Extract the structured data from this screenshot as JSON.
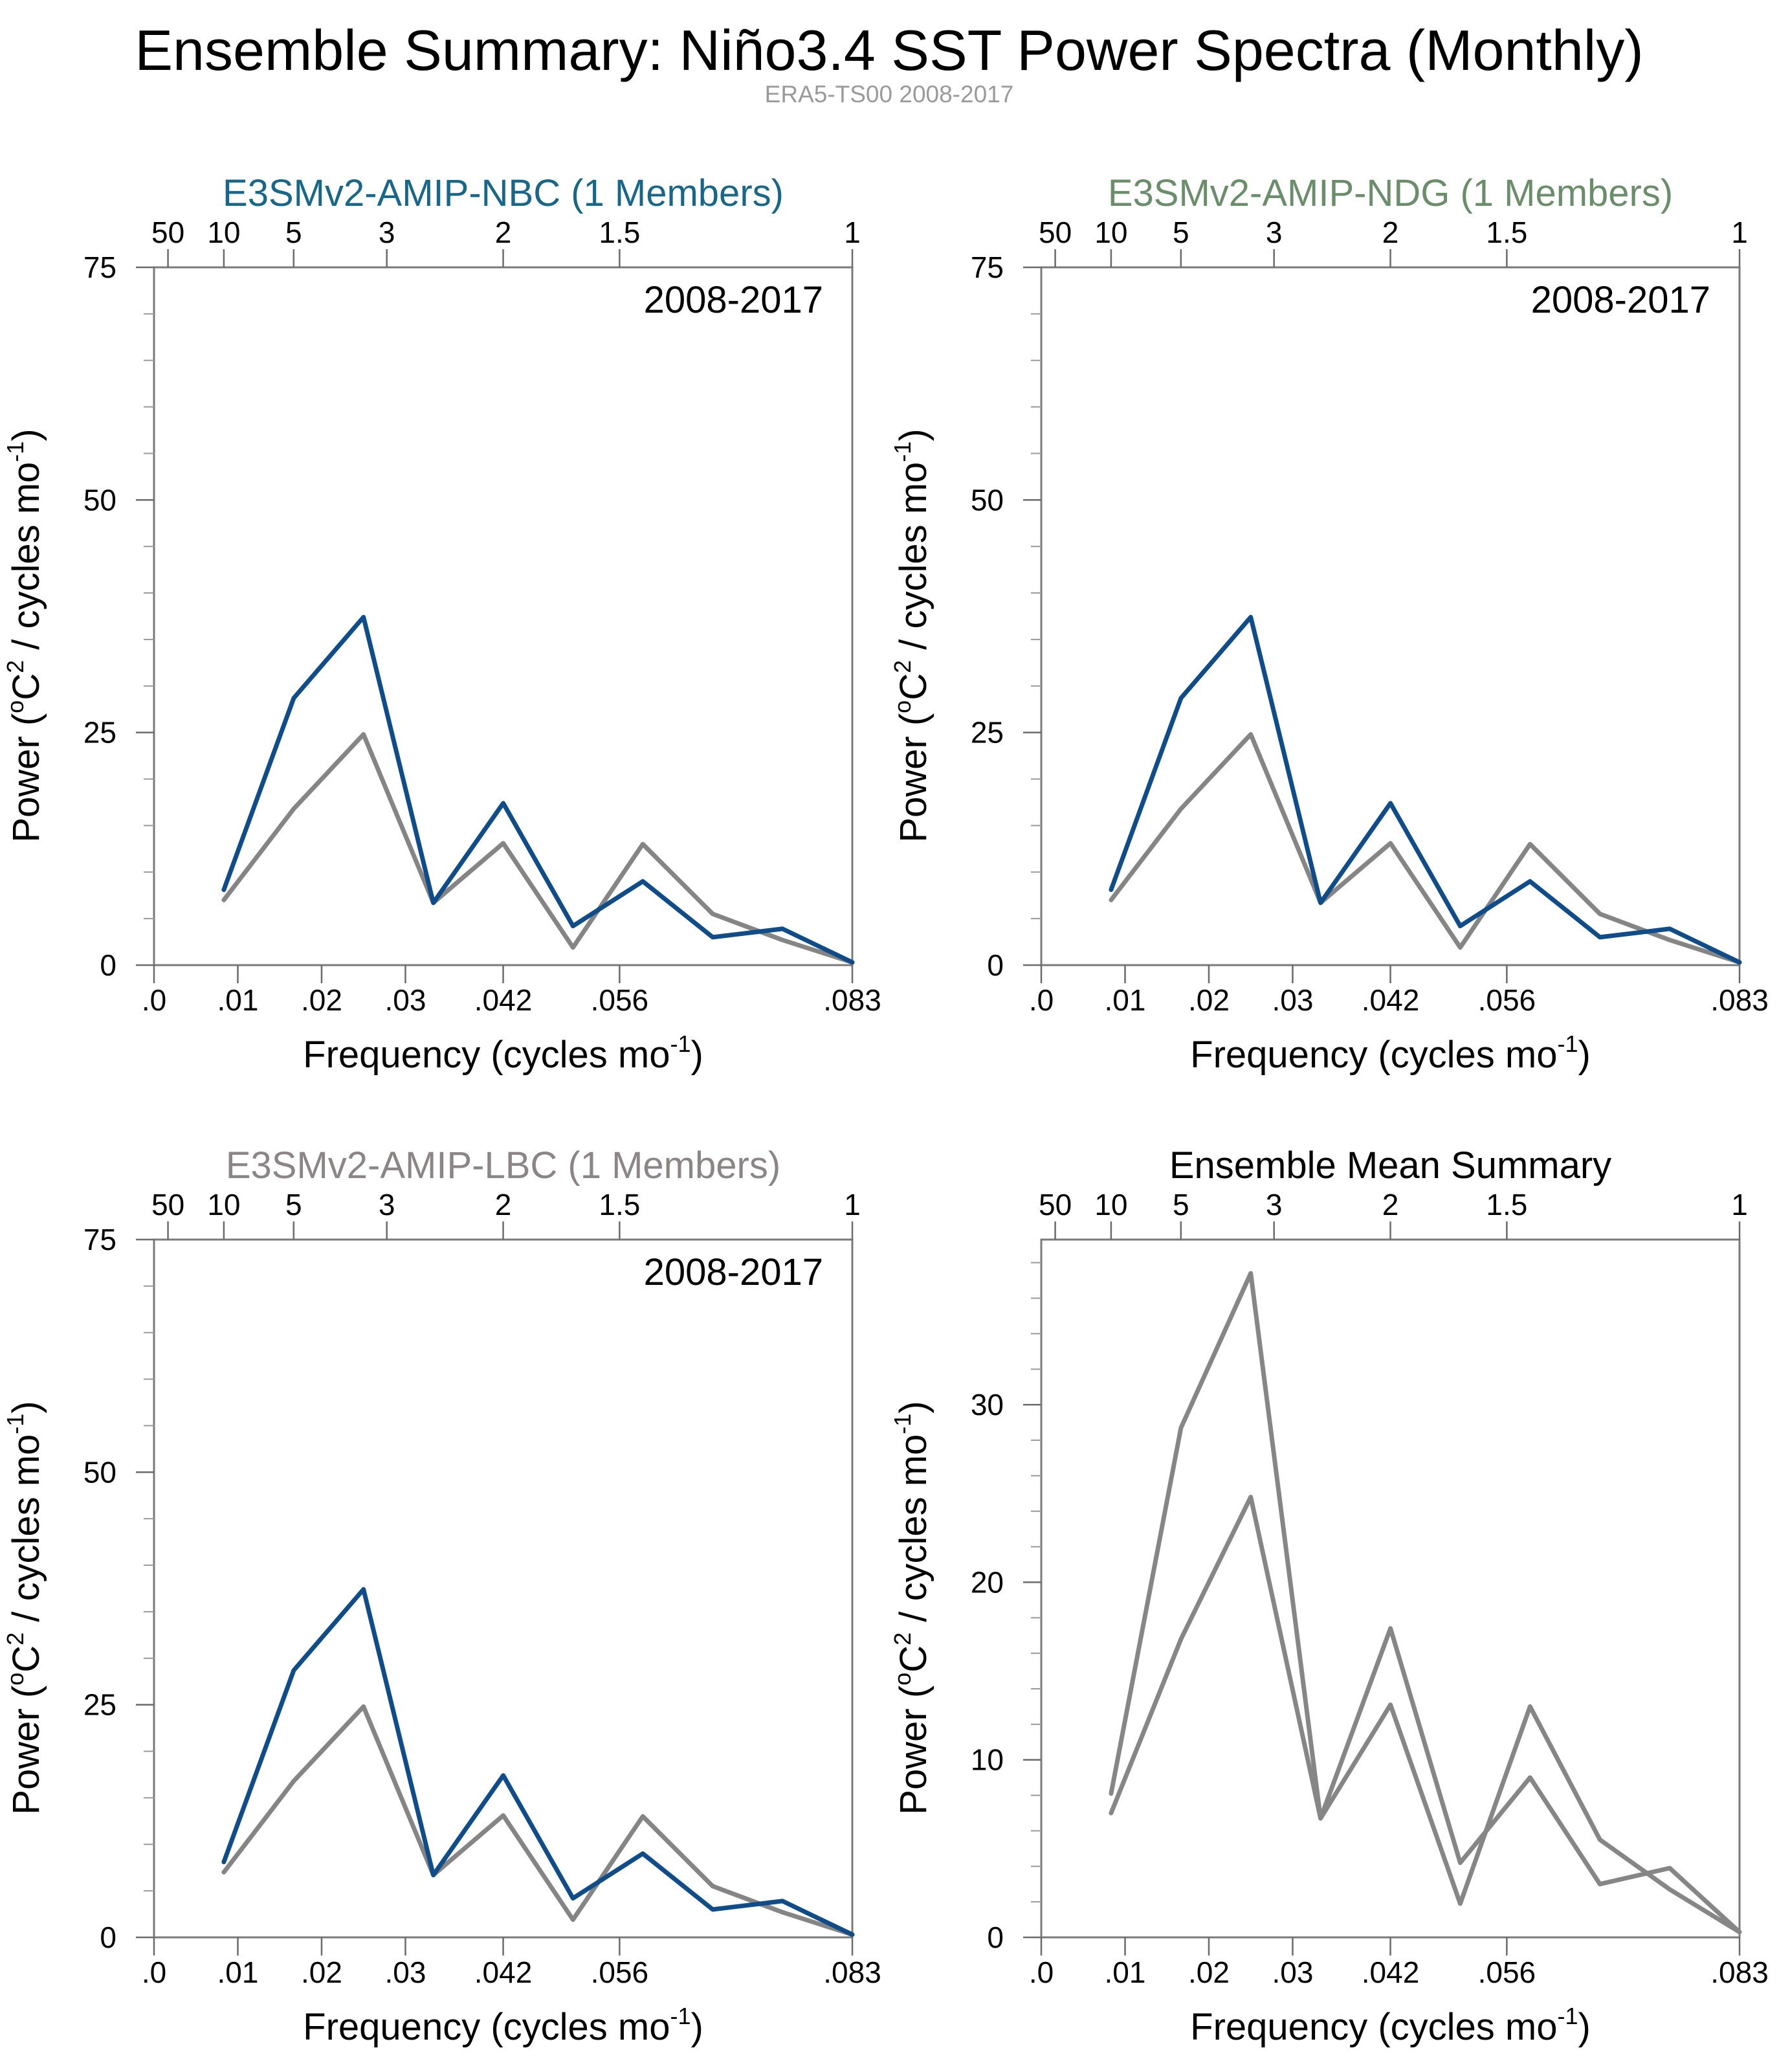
{
  "title": "Ensemble Summary: Niño3.4 SST Power Spectra (Monthly)",
  "subtitle": "ERA5-TS00 2008-2017",
  "chart_data": [
    {
      "type": "line",
      "title": "E3SMv2-AMIP-NBC (1 Members)",
      "title_color": "#17678a",
      "period_label": "2008-2017",
      "xlabel": "Frequency (cycles mo",
      "xlabel_sup": "-1",
      "xlabel_end": ")",
      "ylabel": "Power (",
      "ylabel_parts": [
        "Power (",
        "o",
        "C",
        "2",
        " / cycles mo",
        "-1",
        ")"
      ],
      "xlim": [
        0,
        0.08333
      ],
      "ylim": [
        0,
        75
      ],
      "yticks": [
        0,
        25,
        50,
        75
      ],
      "yminor_step": 5,
      "xticks": [
        0,
        0.01,
        0.02,
        0.03,
        0.041667,
        0.055556,
        0.083333
      ],
      "xtick_labels": [
        ".0",
        ".01",
        ".02",
        ".03",
        ".042",
        ".056",
        ".083"
      ],
      "top_ticks": [
        0.001667,
        0.008333,
        0.016667,
        0.027778,
        0.041667,
        0.055556,
        0.083333
      ],
      "top_tick_labels": [
        "50",
        "10",
        "5",
        "3",
        "2",
        "1.5",
        "1"
      ],
      "x": [
        0.00833,
        0.01667,
        0.025,
        0.03333,
        0.04167,
        0.05,
        0.05833,
        0.06667,
        0.075,
        0.08333
      ],
      "series": [
        {
          "name": "ERA5-TS00",
          "color": "#858585",
          "values": [
            7.0,
            16.8,
            24.8,
            6.7,
            13.1,
            1.9,
            13.0,
            5.5,
            2.7,
            0.3
          ]
        },
        {
          "name": "E3SMv2-AMIP-NBC",
          "color": "#0f4d8a",
          "values": [
            8.1,
            28.7,
            37.4,
            6.7,
            17.4,
            4.2,
            9.0,
            3.0,
            3.9,
            0.3
          ]
        }
      ]
    },
    {
      "type": "line",
      "title": "E3SMv2-AMIP-NDG (1 Members)",
      "title_color": "#6a8e6a",
      "period_label": "2008-2017",
      "xlabel": "Frequency (cycles mo",
      "xlabel_sup": "-1",
      "xlabel_end": ")",
      "ylabel_parts": [
        "Power (",
        "o",
        "C",
        "2",
        " / cycles mo",
        "-1",
        ")"
      ],
      "xlim": [
        0,
        0.08333
      ],
      "ylim": [
        0,
        75
      ],
      "yticks": [
        0,
        25,
        50,
        75
      ],
      "yminor_step": 5,
      "xticks": [
        0,
        0.01,
        0.02,
        0.03,
        0.041667,
        0.055556,
        0.083333
      ],
      "xtick_labels": [
        ".0",
        ".01",
        ".02",
        ".03",
        ".042",
        ".056",
        ".083"
      ],
      "top_ticks": [
        0.001667,
        0.008333,
        0.016667,
        0.027778,
        0.041667,
        0.055556,
        0.083333
      ],
      "top_tick_labels": [
        "50",
        "10",
        "5",
        "3",
        "2",
        "1.5",
        "1"
      ],
      "x": [
        0.00833,
        0.01667,
        0.025,
        0.03333,
        0.04167,
        0.05,
        0.05833,
        0.06667,
        0.075,
        0.08333
      ],
      "series": [
        {
          "name": "ERA5-TS00",
          "color": "#858585",
          "values": [
            7.0,
            16.8,
            24.8,
            6.7,
            13.1,
            1.9,
            13.0,
            5.5,
            2.7,
            0.3
          ]
        },
        {
          "name": "E3SMv2-AMIP-NDG",
          "color": "#0f4d8a",
          "values": [
            8.1,
            28.7,
            37.4,
            6.7,
            17.4,
            4.2,
            9.0,
            3.0,
            3.9,
            0.3
          ]
        }
      ]
    },
    {
      "type": "line",
      "title": "E3SMv2-AMIP-LBC (1 Members)",
      "title_color": "#8c8585",
      "period_label": "2008-2017",
      "xlabel": "Frequency (cycles mo",
      "xlabel_sup": "-1",
      "xlabel_end": ")",
      "ylabel_parts": [
        "Power (",
        "o",
        "C",
        "2",
        " / cycles mo",
        "-1",
        ")"
      ],
      "xlim": [
        0,
        0.08333
      ],
      "ylim": [
        0,
        75
      ],
      "yticks": [
        0,
        25,
        50,
        75
      ],
      "yminor_step": 5,
      "xticks": [
        0,
        0.01,
        0.02,
        0.03,
        0.041667,
        0.055556,
        0.083333
      ],
      "xtick_labels": [
        ".0",
        ".01",
        ".02",
        ".03",
        ".042",
        ".056",
        ".083"
      ],
      "top_ticks": [
        0.001667,
        0.008333,
        0.016667,
        0.027778,
        0.041667,
        0.055556,
        0.083333
      ],
      "top_tick_labels": [
        "50",
        "10",
        "5",
        "3",
        "2",
        "1.5",
        "1"
      ],
      "x": [
        0.00833,
        0.01667,
        0.025,
        0.03333,
        0.04167,
        0.05,
        0.05833,
        0.06667,
        0.075,
        0.08333
      ],
      "series": [
        {
          "name": "ERA5-TS00",
          "color": "#858585",
          "values": [
            7.0,
            16.8,
            24.8,
            6.7,
            13.1,
            1.9,
            13.0,
            5.5,
            2.7,
            0.3
          ]
        },
        {
          "name": "E3SMv2-AMIP-LBC",
          "color": "#0f4d8a",
          "values": [
            8.1,
            28.7,
            37.4,
            6.7,
            17.4,
            4.2,
            9.0,
            3.0,
            3.9,
            0.3
          ]
        }
      ]
    },
    {
      "type": "line",
      "title": "Ensemble Mean Summary",
      "title_color": "#000000",
      "period_label": "",
      "xlabel": "Frequency (cycles mo",
      "xlabel_sup": "-1",
      "xlabel_end": ")",
      "ylabel_parts": [
        "Power (",
        "o",
        "C",
        "2",
        " / cycles mo",
        "-1",
        ")"
      ],
      "xlim": [
        0,
        0.08333
      ],
      "ylim": [
        0,
        39.3
      ],
      "yticks": [
        0,
        10,
        20,
        30
      ],
      "yminor_step": 2,
      "xticks": [
        0,
        0.01,
        0.02,
        0.03,
        0.041667,
        0.055556,
        0.083333
      ],
      "xtick_labels": [
        ".0",
        ".01",
        ".02",
        ".03",
        ".042",
        ".056",
        ".083"
      ],
      "top_ticks": [
        0.001667,
        0.008333,
        0.016667,
        0.027778,
        0.041667,
        0.055556,
        0.083333
      ],
      "top_tick_labels": [
        "50",
        "10",
        "5",
        "3",
        "2",
        "1.5",
        "1"
      ],
      "x": [
        0.00833,
        0.01667,
        0.025,
        0.03333,
        0.04167,
        0.05,
        0.05833,
        0.06667,
        0.075,
        0.08333
      ],
      "series": [
        {
          "name": "ERA5-TS00",
          "color": "#868686",
          "values": [
            7.0,
            16.8,
            24.8,
            6.7,
            13.1,
            1.9,
            13.0,
            5.5,
            2.7,
            0.3
          ]
        },
        {
          "name": "Ensemble mean",
          "color": "#868686",
          "values": [
            8.1,
            28.7,
            37.4,
            6.7,
            17.4,
            4.2,
            9.0,
            3.0,
            3.9,
            0.3
          ]
        }
      ]
    }
  ]
}
